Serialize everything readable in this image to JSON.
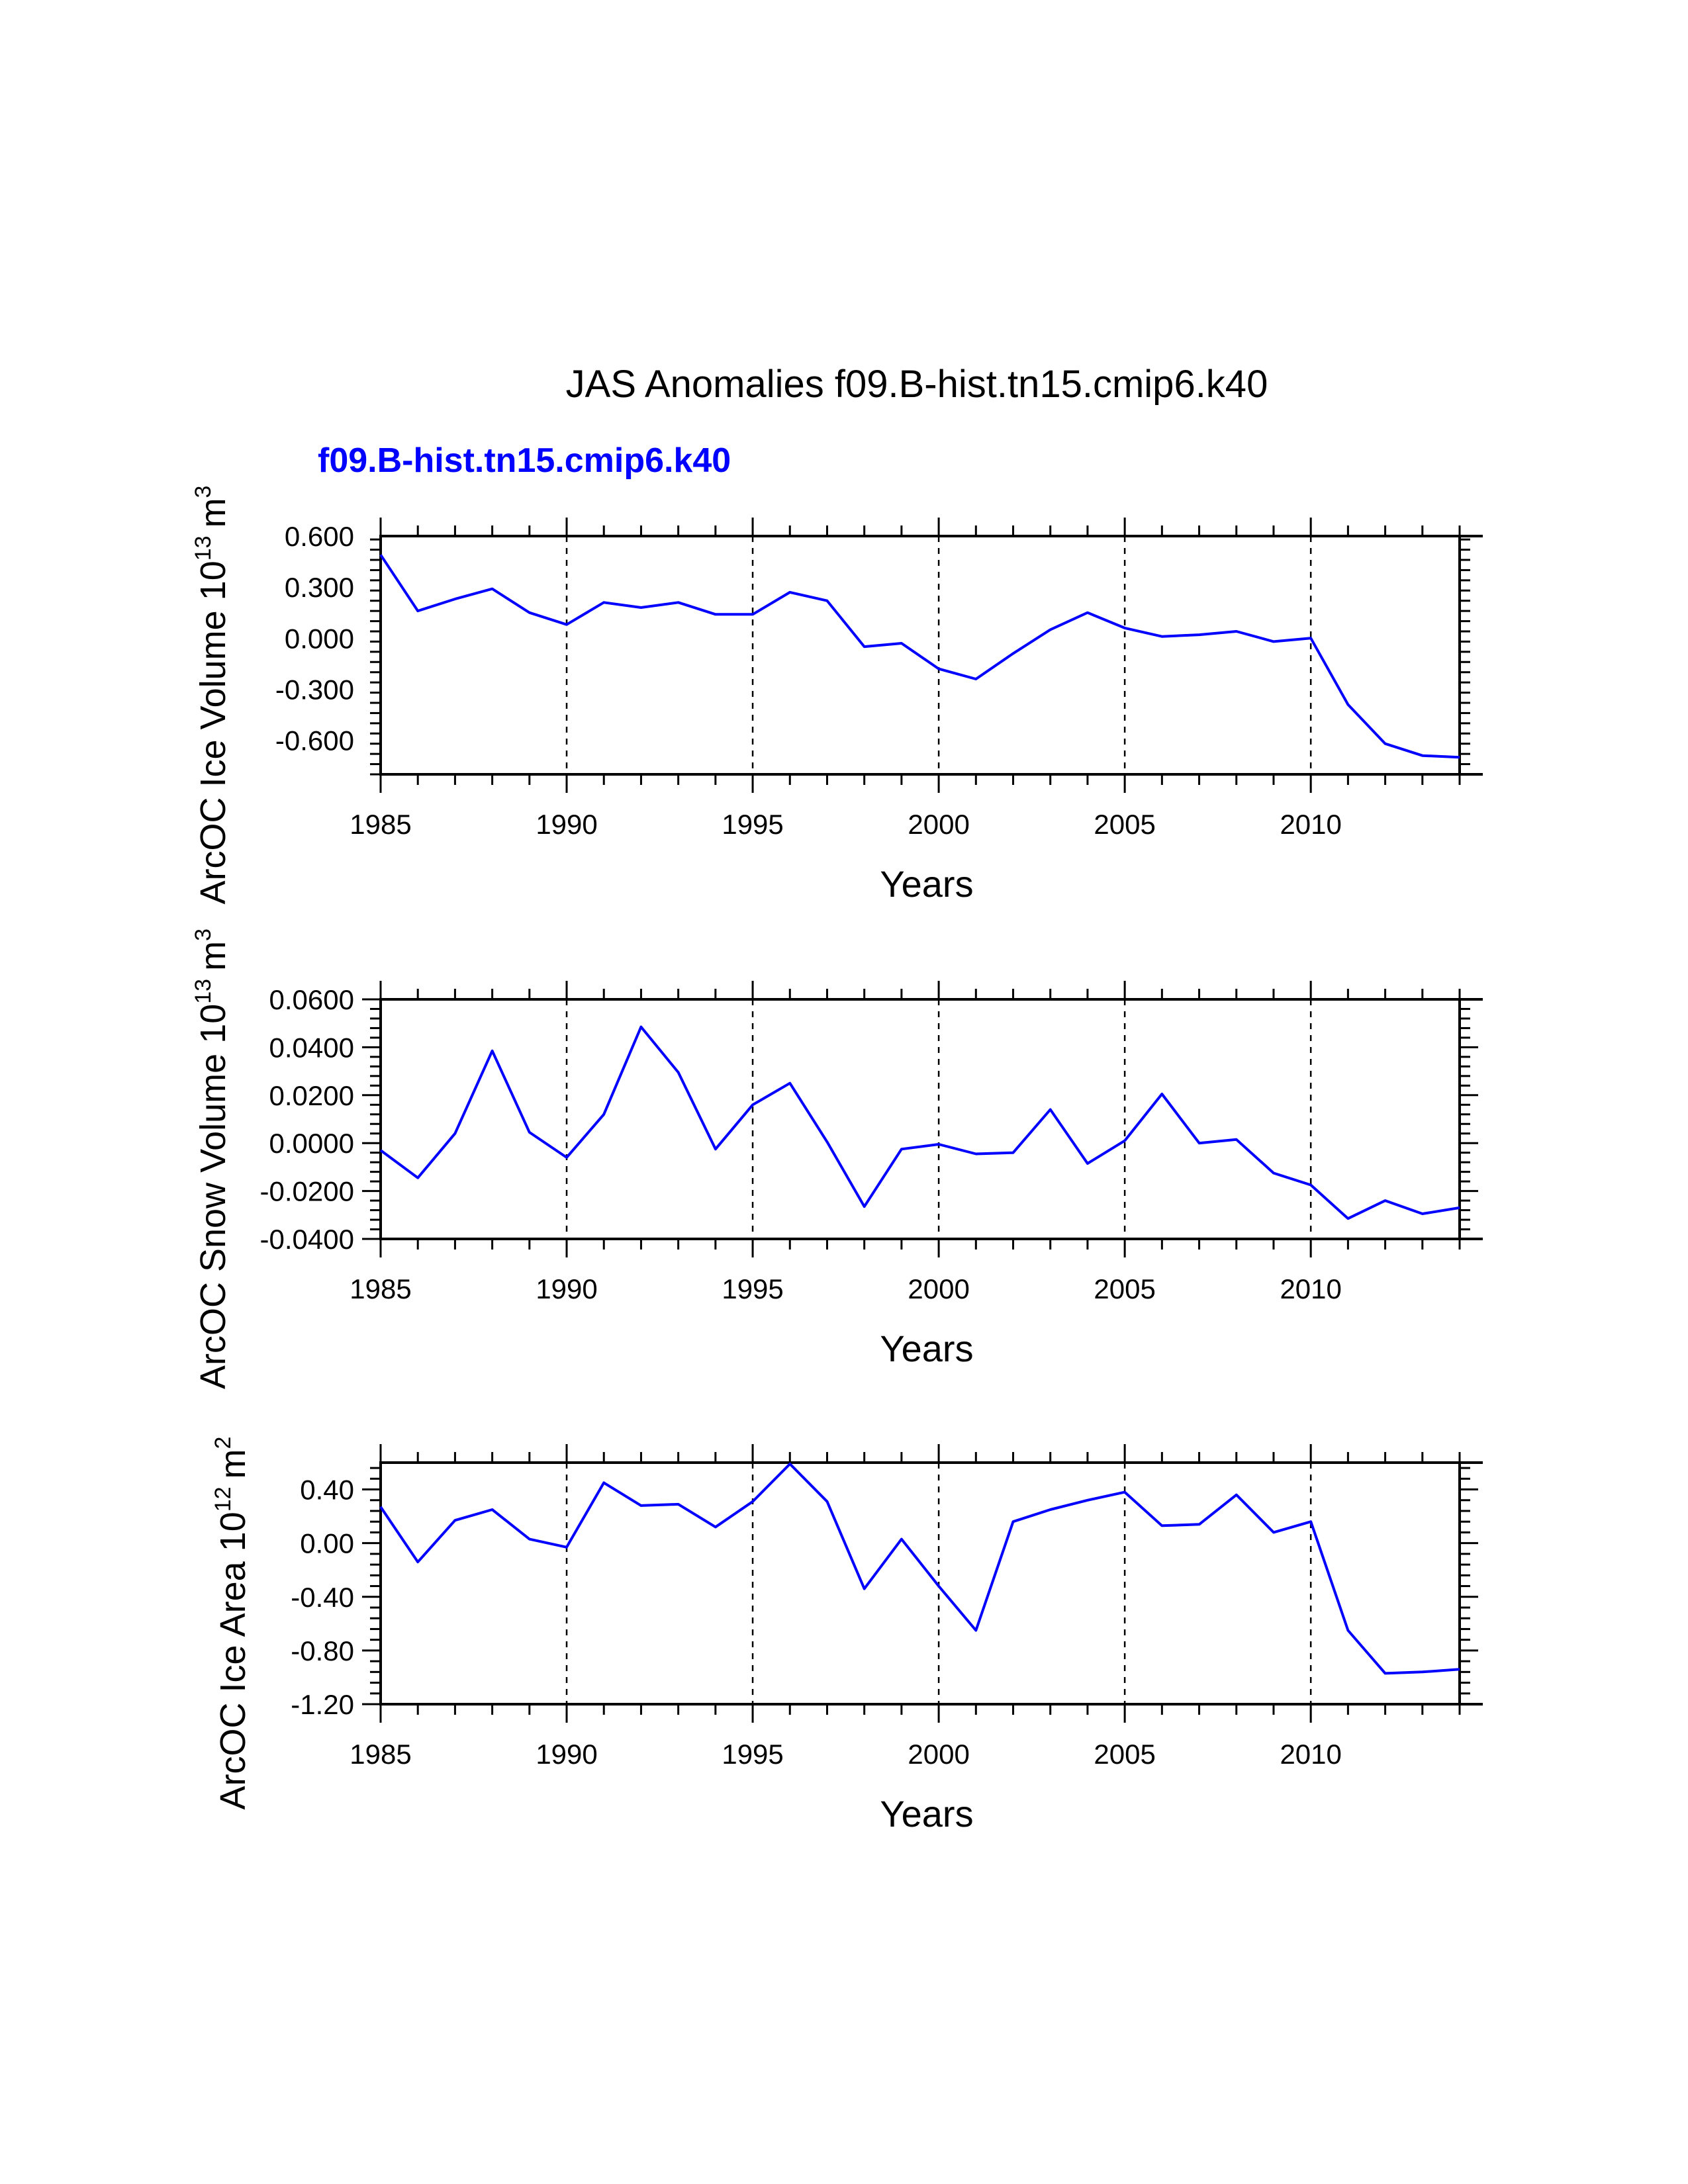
{
  "figure": {
    "title": "JAS Anomalies f09.B-hist.tn15.cmip6.k40",
    "legend_label": "f09.B-hist.tn15.cmip6.k40",
    "line_color": "#0000ff"
  },
  "chart_data": [
    {
      "type": "line",
      "ylabel": "ArcOC Ice Volume 10",
      "ylabel_exp": "13",
      "ylabel_unit": "m",
      "ylabel_unit_exp": "3",
      "xlabel": "Years",
      "xlim": [
        1985,
        2014
      ],
      "ylim": [
        -0.8,
        0.6
      ],
      "yticks": [
        0.6,
        0.3,
        0.0,
        -0.3,
        -0.6
      ],
      "ytick_labels": [
        "0.600",
        "0.300",
        "0.000",
        "-0.300",
        "-0.600"
      ],
      "xticks": [
        1985,
        1990,
        1995,
        2000,
        2005,
        2010
      ],
      "xtick_labels": [
        "1985",
        "1990",
        "1995",
        "2000",
        "2005",
        "2010"
      ],
      "x": [
        1985,
        1986,
        1987,
        1988,
        1989,
        1990,
        1991,
        1992,
        1993,
        1994,
        1995,
        1996,
        1997,
        1998,
        1999,
        2000,
        2001,
        2002,
        2003,
        2004,
        2005,
        2006,
        2007,
        2008,
        2009,
        2010,
        2011,
        2012,
        2013,
        2014
      ],
      "values": [
        0.49,
        0.16,
        0.23,
        0.29,
        0.15,
        0.08,
        0.21,
        0.18,
        0.21,
        0.14,
        0.14,
        0.27,
        0.22,
        -0.05,
        -0.03,
        -0.18,
        -0.24,
        -0.09,
        0.05,
        0.15,
        0.06,
        0.01,
        0.02,
        0.04,
        -0.02,
        0.0,
        -0.39,
        -0.62,
        -0.69,
        -0.7
      ]
    },
    {
      "type": "line",
      "ylabel": "ArcOC Snow Volume 10",
      "ylabel_exp": "13",
      "ylabel_unit": "m",
      "ylabel_unit_exp": "3",
      "xlabel": "Years",
      "xlim": [
        1985,
        2014
      ],
      "ylim": [
        -0.04,
        0.06
      ],
      "yticks": [
        0.06,
        0.04,
        0.02,
        0.0,
        -0.02,
        -0.04
      ],
      "ytick_labels": [
        "0.0600",
        "0.0400",
        "0.0200",
        "0.0000",
        "-0.0200",
        "-0.0400"
      ],
      "xticks": [
        1985,
        1990,
        1995,
        2000,
        2005,
        2010
      ],
      "xtick_labels": [
        "1985",
        "1990",
        "1995",
        "2000",
        "2005",
        "2010"
      ],
      "x": [
        1985,
        1986,
        1987,
        1988,
        1989,
        1990,
        1991,
        1992,
        1993,
        1994,
        1995,
        1996,
        1997,
        1998,
        1999,
        2000,
        2001,
        2002,
        2003,
        2004,
        2005,
        2006,
        2007,
        2008,
        2009,
        2010,
        2011,
        2012,
        2013,
        2014
      ],
      "values": [
        -0.003,
        -0.0145,
        0.004,
        0.0385,
        0.0045,
        -0.006,
        0.012,
        0.0485,
        0.0295,
        -0.0025,
        0.016,
        0.025,
        0.0005,
        -0.0265,
        -0.0025,
        -0.0005,
        -0.0045,
        -0.004,
        0.014,
        -0.0085,
        0.001,
        0.0205,
        0.0,
        0.0015,
        -0.0125,
        -0.0175,
        -0.0315,
        -0.024,
        -0.0295,
        -0.027
      ]
    },
    {
      "type": "line",
      "ylabel": "ArcOC Ice Area 10",
      "ylabel_exp": "12",
      "ylabel_unit": "m",
      "ylabel_unit_exp": "2",
      "xlabel": "Years",
      "xlim": [
        1985,
        2014
      ],
      "ylim": [
        -1.2,
        0.6
      ],
      "yticks": [
        0.4,
        0.0,
        -0.4,
        -0.8,
        -1.2
      ],
      "ytick_labels": [
        "0.40",
        "0.00",
        "-0.40",
        "-0.80",
        "-1.20"
      ],
      "xticks": [
        1985,
        1990,
        1995,
        2000,
        2005,
        2010
      ],
      "xtick_labels": [
        "1985",
        "1990",
        "1995",
        "2000",
        "2005",
        "2010"
      ],
      "x": [
        1985,
        1986,
        1987,
        1988,
        1989,
        1990,
        1991,
        1992,
        1993,
        1994,
        1995,
        1996,
        1997,
        1998,
        1999,
        2000,
        2001,
        2002,
        2003,
        2004,
        2005,
        2006,
        2007,
        2008,
        2009,
        2010,
        2011,
        2012,
        2013,
        2014
      ],
      "values": [
        0.27,
        -0.14,
        0.17,
        0.25,
        0.03,
        -0.03,
        0.45,
        0.28,
        0.29,
        0.12,
        0.31,
        0.59,
        0.31,
        -0.34,
        0.03,
        -0.32,
        -0.65,
        0.16,
        0.25,
        0.32,
        0.38,
        0.13,
        0.14,
        0.36,
        0.08,
        0.16,
        -0.65,
        -0.97,
        -0.96,
        -0.94
      ]
    }
  ]
}
